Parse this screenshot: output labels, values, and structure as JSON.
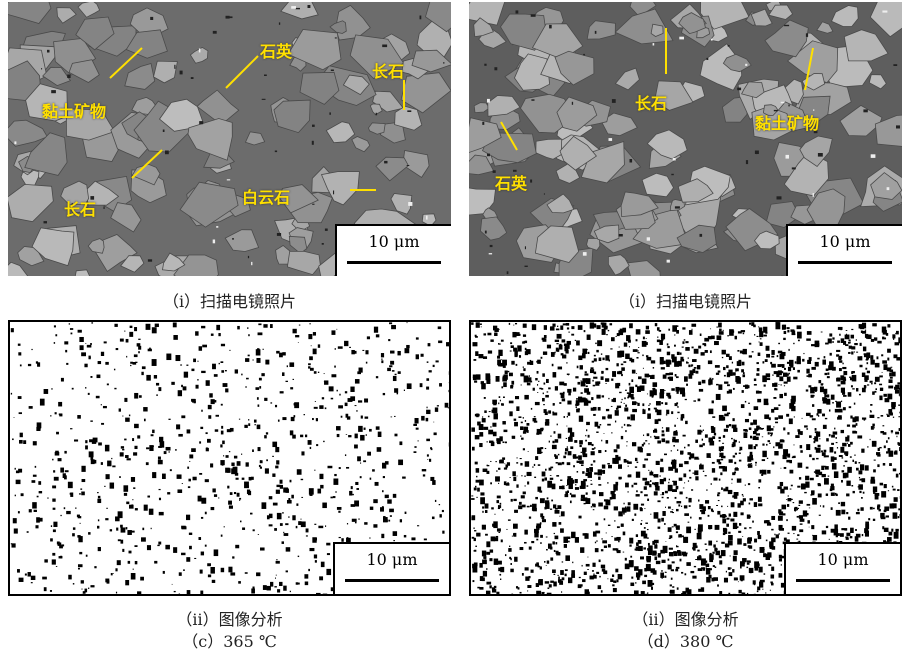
{
  "panels": {
    "c_sem": {
      "labels": [
        "黏土矿物",
        "石英",
        "长石",
        "长石",
        "白云石"
      ],
      "scale": "10 μm",
      "caption": "（ⅰ）扫描电镜照片"
    },
    "d_sem": {
      "labels": [
        "长石",
        "黏土矿物",
        "石英"
      ],
      "scale": "10 μm",
      "caption": "（ⅰ）扫描电镜照片"
    },
    "c_bin": {
      "scale": "10 μm",
      "caption": "（ⅱ）图像分析"
    },
    "d_bin": {
      "scale": "10 μm",
      "caption": "（ⅱ）图像分析"
    }
  },
  "figure_labels": {
    "c": "（c）365 ℃",
    "d": "（d）380 ℃"
  },
  "colors": {
    "label_yellow": "#ffe000",
    "sem_gray": "#8c8c8c"
  }
}
